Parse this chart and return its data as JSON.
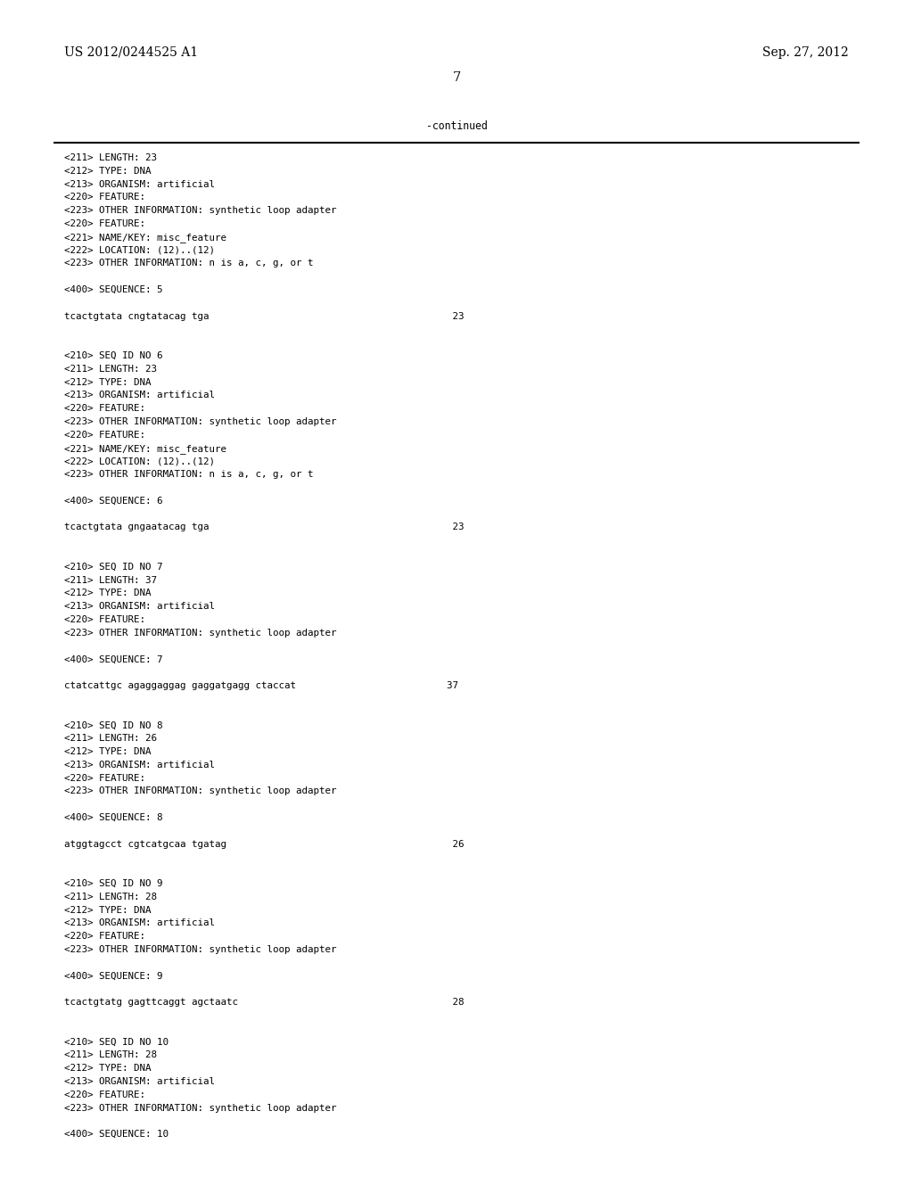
{
  "background_color": "#ffffff",
  "header_left": "US 2012/0244525 A1",
  "header_right": "Sep. 27, 2012",
  "page_number": "7",
  "continued_label": "-continued",
  "body_lines": [
    "<211> LENGTH: 23",
    "<212> TYPE: DNA",
    "<213> ORGANISM: artificial",
    "<220> FEATURE:",
    "<223> OTHER INFORMATION: synthetic loop adapter",
    "<220> FEATURE:",
    "<221> NAME/KEY: misc_feature",
    "<222> LOCATION: (12)..(12)",
    "<223> OTHER INFORMATION: n is a, c, g, or t",
    "",
    "<400> SEQUENCE: 5",
    "",
    "tcactgtata cngtatacag tga                                          23",
    "",
    "",
    "<210> SEQ ID NO 6",
    "<211> LENGTH: 23",
    "<212> TYPE: DNA",
    "<213> ORGANISM: artificial",
    "<220> FEATURE:",
    "<223> OTHER INFORMATION: synthetic loop adapter",
    "<220> FEATURE:",
    "<221> NAME/KEY: misc_feature",
    "<222> LOCATION: (12)..(12)",
    "<223> OTHER INFORMATION: n is a, c, g, or t",
    "",
    "<400> SEQUENCE: 6",
    "",
    "tcactgtata gngaatacag tga                                          23",
    "",
    "",
    "<210> SEQ ID NO 7",
    "<211> LENGTH: 37",
    "<212> TYPE: DNA",
    "<213> ORGANISM: artificial",
    "<220> FEATURE:",
    "<223> OTHER INFORMATION: synthetic loop adapter",
    "",
    "<400> SEQUENCE: 7",
    "",
    "ctatcattgc agaggaggag gaggatgagg ctaccat                          37",
    "",
    "",
    "<210> SEQ ID NO 8",
    "<211> LENGTH: 26",
    "<212> TYPE: DNA",
    "<213> ORGANISM: artificial",
    "<220> FEATURE:",
    "<223> OTHER INFORMATION: synthetic loop adapter",
    "",
    "<400> SEQUENCE: 8",
    "",
    "atggtagcct cgtcatgcaa tgatag                                       26",
    "",
    "",
    "<210> SEQ ID NO 9",
    "<211> LENGTH: 28",
    "<212> TYPE: DNA",
    "<213> ORGANISM: artificial",
    "<220> FEATURE:",
    "<223> OTHER INFORMATION: synthetic loop adapter",
    "",
    "<400> SEQUENCE: 9",
    "",
    "tcactgtatg gagttcaggt agctaatc                                     28",
    "",
    "",
    "<210> SEQ ID NO 10",
    "<211> LENGTH: 28",
    "<212> TYPE: DNA",
    "<213> ORGANISM: artificial",
    "<220> FEATURE:",
    "<223> OTHER INFORMATION: synthetic loop adapter",
    "",
    "<400> SEQUENCE: 10"
  ],
  "text_color": "#000000",
  "mono_fontsize": 7.8,
  "header_fontsize": 10.0,
  "page_num_fontsize": 10.5
}
